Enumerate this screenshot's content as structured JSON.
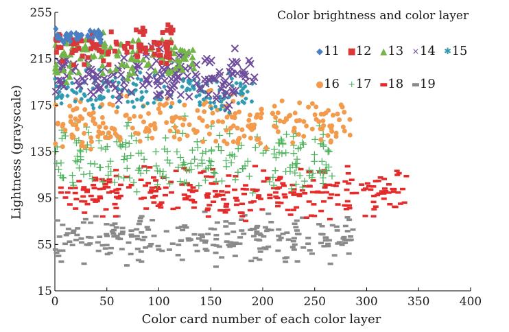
{
  "chart_data": {
    "type": "scatter",
    "title": "Color brightness and color layer",
    "xlabel": "Color card number of each color layer",
    "ylabel": "Lightness (grayscale)",
    "xlim": [
      0,
      400
    ],
    "ylim": [
      15,
      255
    ],
    "xticks": [
      0,
      50,
      100,
      150,
      200,
      250,
      300,
      350,
      400
    ],
    "yticks": [
      15,
      55,
      95,
      135,
      175,
      215,
      255
    ],
    "legend_position": "top-right",
    "series": [
      {
        "name": "11",
        "marker": "diamond",
        "color": "#4a7fc1",
        "x_range": [
          0,
          45
        ],
        "y_center": 235,
        "y_spread": 5
      },
      {
        "name": "12",
        "marker": "square",
        "color": "#d9393b",
        "x_range": [
          0,
          115
        ],
        "y_center": 227,
        "y_spread": 14
      },
      {
        "name": "13",
        "marker": "triangle",
        "color": "#74b54a",
        "x_range": [
          0,
          135
        ],
        "y_center": 216,
        "y_spread": 18
      },
      {
        "name": "14",
        "marker": "x",
        "color": "#6e4e9c",
        "x_range": [
          0,
          195
        ],
        "y_center": 200,
        "y_spread": 20
      },
      {
        "name": "15",
        "marker": "asterisk",
        "color": "#2f9ab0",
        "x_range": [
          0,
          190
        ],
        "y_center": 187,
        "y_spread": 16
      },
      {
        "name": "16",
        "marker": "circle",
        "color": "#f29b4c",
        "x_range": [
          0,
          285
        ],
        "y_center": 160,
        "y_spread": 20
      },
      {
        "name": "17",
        "marker": "plus",
        "color": "#4cb35c",
        "x_range": [
          0,
          270
        ],
        "y_center": 127,
        "y_spread": 28
      },
      {
        "name": "18",
        "marker": "dash",
        "color": "#e52a2a",
        "x_range": [
          0,
          340
        ],
        "y_center": 100,
        "y_spread": 18
      },
      {
        "name": "19",
        "marker": "dash",
        "color": "#8a8a8a",
        "x_range": [
          0,
          290
        ],
        "y_center": 60,
        "y_spread": 18
      }
    ]
  }
}
